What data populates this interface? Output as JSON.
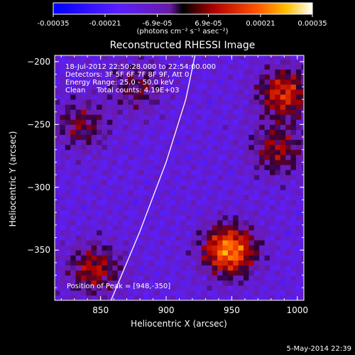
{
  "chart_data": {
    "type": "heatmap",
    "title": "Reconstructed RHESSI Image",
    "xlabel": "Heliocentric X (arcsec)",
    "ylabel": "Heliocentric Y (arcsec)",
    "xlim": [
      815,
      1005
    ],
    "ylim": [
      -390,
      -195
    ],
    "x_ticks": [
      850,
      900,
      950,
      1000
    ],
    "y_ticks": [
      -200,
      -250,
      -300,
      -350
    ],
    "colorbar": {
      "ticks": [
        "-0.00035",
        "-0.00021",
        "-6.9e-05",
        "6.9e-05",
        "0.00021",
        "0.00035"
      ],
      "units": "(photons cm⁻² s⁻¹ asec⁻²)",
      "range": [
        -0.00035,
        0.00035
      ]
    },
    "annotations": [
      "18-Jul-2012 22:50:28.000 to 22:54:00.000",
      "Detectors: 3F 5F 6F 7F 8F 9F, Att 0",
      "Energy Range: 25.0 - 50.0 keV",
      "Clean     Total counts: 4.19E+03"
    ],
    "peak_label": "Position of Peak = [948,-350]",
    "peak": [
      948,
      -350
    ],
    "limb_curve": [
      [
        858,
        -390
      ],
      [
        880,
        -335
      ],
      [
        900,
        -280
      ],
      [
        915,
        -230
      ],
      [
        922,
        -195
      ]
    ],
    "sources": [
      {
        "x": 948,
        "y": -350,
        "value": 0.00035
      },
      {
        "x": 990,
        "y": -225,
        "value": 0.00025
      },
      {
        "x": 985,
        "y": -270,
        "value": 0.00018
      },
      {
        "x": 845,
        "y": -365,
        "value": 0.0002
      },
      {
        "x": 835,
        "y": -250,
        "value": 0.00015
      },
      {
        "x": 878,
        "y": -220,
        "value": 0.00013
      }
    ]
  },
  "footer": {
    "timestamp": "5-May-2014 22:39"
  }
}
